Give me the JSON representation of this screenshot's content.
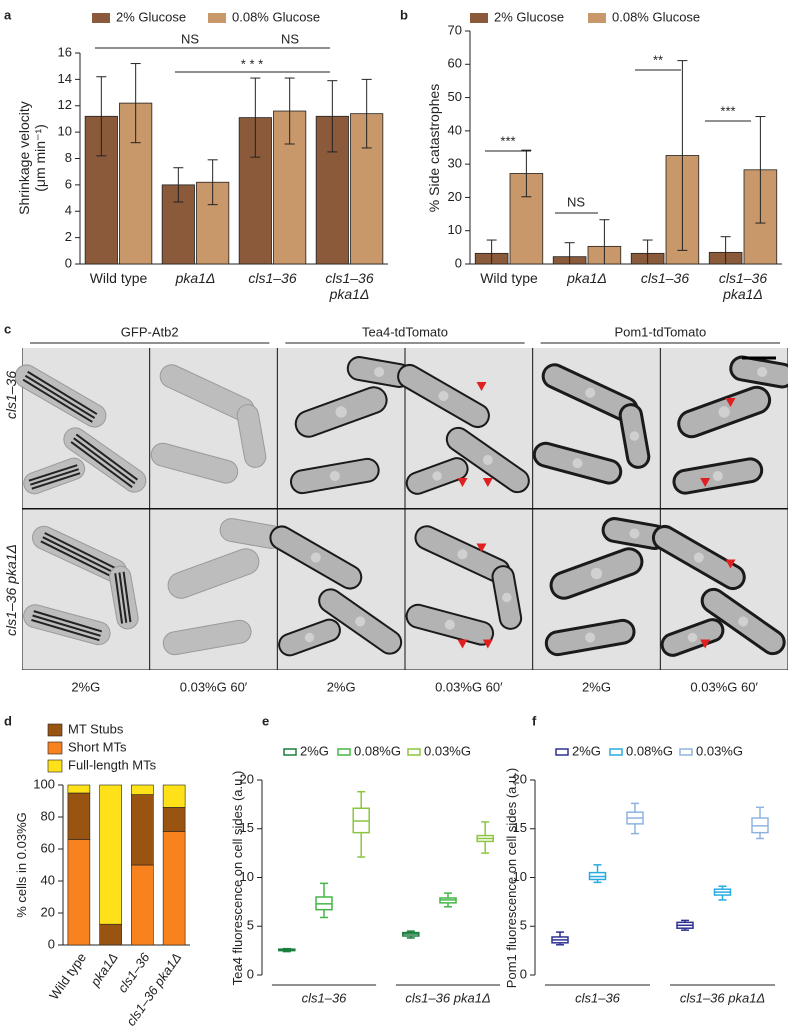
{
  "chart_data": [
    {
      "type": "bar",
      "panel": "a",
      "y_label": "Shrinkage velocity (μm min⁻¹)",
      "categories": [
        "Wild type",
        "pka1Δ",
        "cls1–36",
        "cls1–36 pka1Δ"
      ],
      "series": [
        {
          "name": "2% Glucose",
          "color": "#8a5a3b",
          "values": [
            11.2,
            6.0,
            11.1,
            11.2
          ],
          "errors": [
            3.0,
            1.3,
            3.0,
            2.7
          ]
        },
        {
          "name": "0.08% Glucose",
          "color": "#c8986a",
          "values": [
            12.2,
            6.2,
            11.6,
            11.4
          ],
          "errors": [
            3.0,
            1.7,
            2.5,
            2.6
          ]
        }
      ],
      "ylim": [
        0,
        16
      ],
      "yticks": [
        0,
        2,
        4,
        6,
        8,
        10,
        12,
        14,
        16
      ],
      "annotations": [
        "NS",
        "NS",
        "* * *"
      ]
    },
    {
      "type": "bar",
      "panel": "b",
      "y_label": "% Side catastrophes",
      "categories": [
        "Wild type",
        "pka1Δ",
        "cls1–36",
        "cls1–36 pka1Δ"
      ],
      "series": [
        {
          "name": "2% Glucose",
          "color": "#8a5a3b",
          "values": [
            3.2,
            2.2,
            3.2,
            3.5
          ],
          "errors": [
            4.0,
            4.2,
            4.0,
            4.7
          ]
        },
        {
          "name": "0.08% Glucose",
          "color": "#c8986a",
          "values": [
            27.2,
            5.3,
            32.6,
            28.3
          ],
          "errors": [
            7.0,
            8.0,
            28.5,
            16.0
          ]
        }
      ],
      "ylim": [
        0,
        70
      ],
      "yticks": [
        0,
        10,
        20,
        30,
        40,
        50,
        60,
        70
      ],
      "annotations": [
        "***",
        "NS",
        "**",
        "***"
      ]
    },
    {
      "type": "stacked_bar",
      "panel": "d",
      "y_label": "% cells in 0.03%G",
      "categories": [
        "Wild type",
        "pka1Δ",
        "cls1–36",
        "cls1–36 pka1Δ"
      ],
      "series": [
        {
          "name": "MT Stubs",
          "color": "#9a5412",
          "values": [
            29,
            13,
            44,
            15
          ]
        },
        {
          "name": "Short MTs",
          "color": "#f7821e",
          "values": [
            66,
            0,
            50,
            71
          ]
        },
        {
          "name": "Full-length MTs",
          "color": "#ffe119",
          "values": [
            5,
            87,
            6,
            14
          ]
        }
      ],
      "ylim": [
        0,
        100
      ],
      "yticks": [
        0,
        20,
        40,
        60,
        80,
        100
      ]
    },
    {
      "type": "box",
      "panel": "e",
      "y_label": "Tea4 fluorescence on cell sides (a.u.)",
      "groups": [
        "cls1–36",
        "cls1–36 pka1Δ"
      ],
      "series": [
        {
          "name": "2%G",
          "color": "#1a7f3c",
          "values": [
            {
              "min": 2.4,
              "q1": 2.5,
              "median": 2.6,
              "q3": 2.65,
              "max": 2.7
            },
            {
              "min": 3.8,
              "q1": 4.0,
              "median": 4.2,
              "q3": 4.35,
              "max": 4.5
            }
          ]
        },
        {
          "name": "0.08%G",
          "color": "#45b649",
          "values": [
            {
              "min": 5.9,
              "q1": 6.7,
              "median": 7.3,
              "q3": 8.0,
              "max": 9.4
            },
            {
              "min": 7.0,
              "q1": 7.4,
              "median": 7.7,
              "q3": 7.9,
              "max": 8.4
            }
          ]
        },
        {
          "name": "0.03%G",
          "color": "#8cc63f",
          "values": [
            {
              "min": 12.1,
              "q1": 14.6,
              "median": 15.8,
              "q3": 17.1,
              "max": 18.8
            },
            {
              "min": 12.5,
              "q1": 13.7,
              "median": 14.0,
              "q3": 14.3,
              "max": 15.7
            }
          ]
        }
      ],
      "ylim": [
        0,
        20
      ],
      "yticks": [
        0,
        5,
        10,
        15,
        20
      ]
    },
    {
      "type": "box",
      "panel": "f",
      "y_label": "Pom1 fluorescence on cell sides (a.u.)",
      "groups": [
        "cls1–36",
        "cls1–36 pka1Δ"
      ],
      "series": [
        {
          "name": "2%G",
          "color": "#2e3192",
          "values": [
            {
              "min": 3.1,
              "q1": 3.3,
              "median": 3.6,
              "q3": 3.9,
              "max": 4.4
            },
            {
              "min": 4.6,
              "q1": 4.8,
              "median": 5.1,
              "q3": 5.4,
              "max": 5.6
            }
          ]
        },
        {
          "name": "0.08%G",
          "color": "#29abe2",
          "values": [
            {
              "min": 9.5,
              "q1": 9.8,
              "median": 10.1,
              "q3": 10.5,
              "max": 11.3
            },
            {
              "min": 7.7,
              "q1": 8.2,
              "median": 8.5,
              "q3": 8.8,
              "max": 9.1
            }
          ]
        },
        {
          "name": "0.03%G",
          "color": "#8fb3e0",
          "values": [
            {
              "min": 14.5,
              "q1": 15.5,
              "median": 16.1,
              "q3": 16.7,
              "max": 17.6
            },
            {
              "min": 14.0,
              "q1": 14.6,
              "median": 15.3,
              "q3": 16.1,
              "max": 17.2
            }
          ]
        }
      ],
      "ylim": [
        0,
        20
      ],
      "yticks": [
        0,
        5,
        10,
        15,
        20
      ]
    }
  ],
  "image_panel": {
    "panel": "c",
    "columns": [
      "GFP-Atb2",
      "Tea4-tdTomato",
      "Pom1-tdTomato"
    ],
    "rows": [
      "cls1–36",
      "cls1–36 pka1Δ"
    ],
    "conditions": [
      "2%G",
      "0.03%G 60′",
      "2%G",
      "0.03%G 60′",
      "2%G",
      "0.03%G 60′"
    ]
  }
}
